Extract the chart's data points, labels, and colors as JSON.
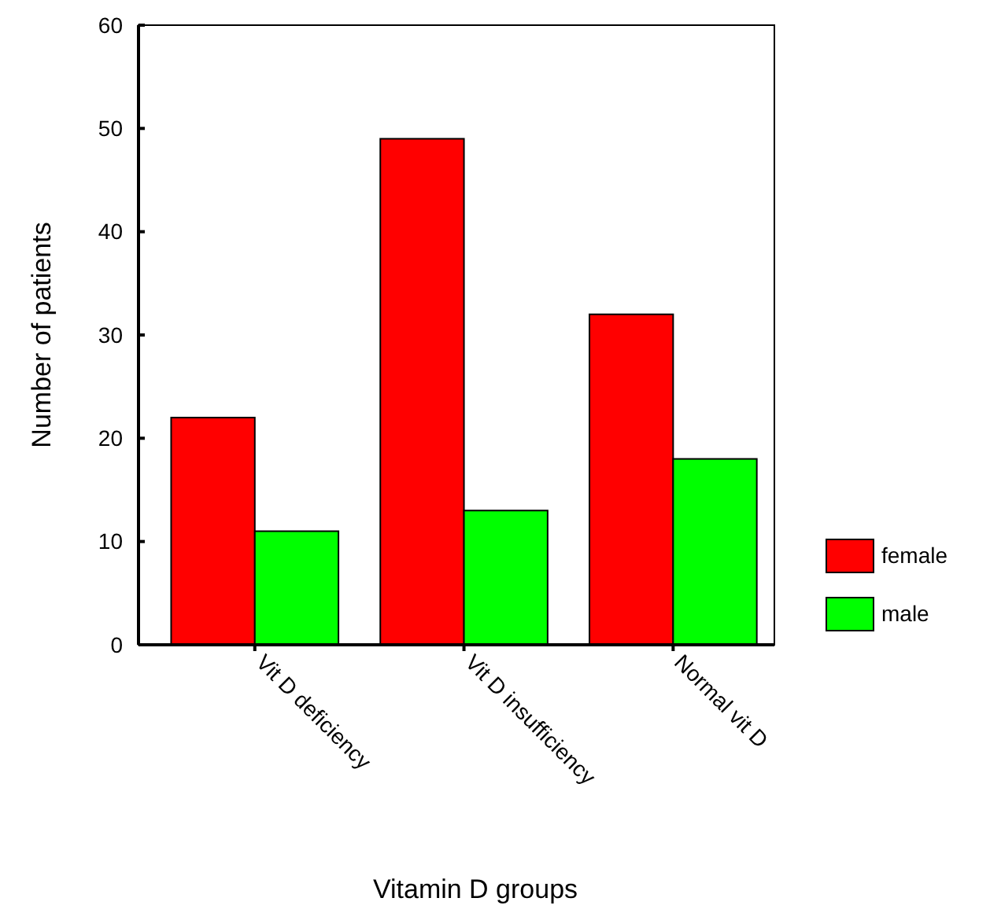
{
  "chart_data": {
    "type": "bar",
    "xlabel": "Vitamin D groups",
    "ylabel": "Number of patients",
    "categories": [
      "Vit D deficiency",
      "Vit D insufficiency",
      "Normal vit D"
    ],
    "series": [
      {
        "name": "female",
        "color": "#ff0000",
        "values": [
          22,
          49,
          32
        ]
      },
      {
        "name": "male",
        "color": "#00ff00",
        "values": [
          11,
          13,
          18
        ]
      }
    ],
    "ylim": [
      0,
      60
    ],
    "yticks": [
      0,
      10,
      20,
      30,
      40,
      50,
      60
    ],
    "legend": "right",
    "grid": false
  }
}
